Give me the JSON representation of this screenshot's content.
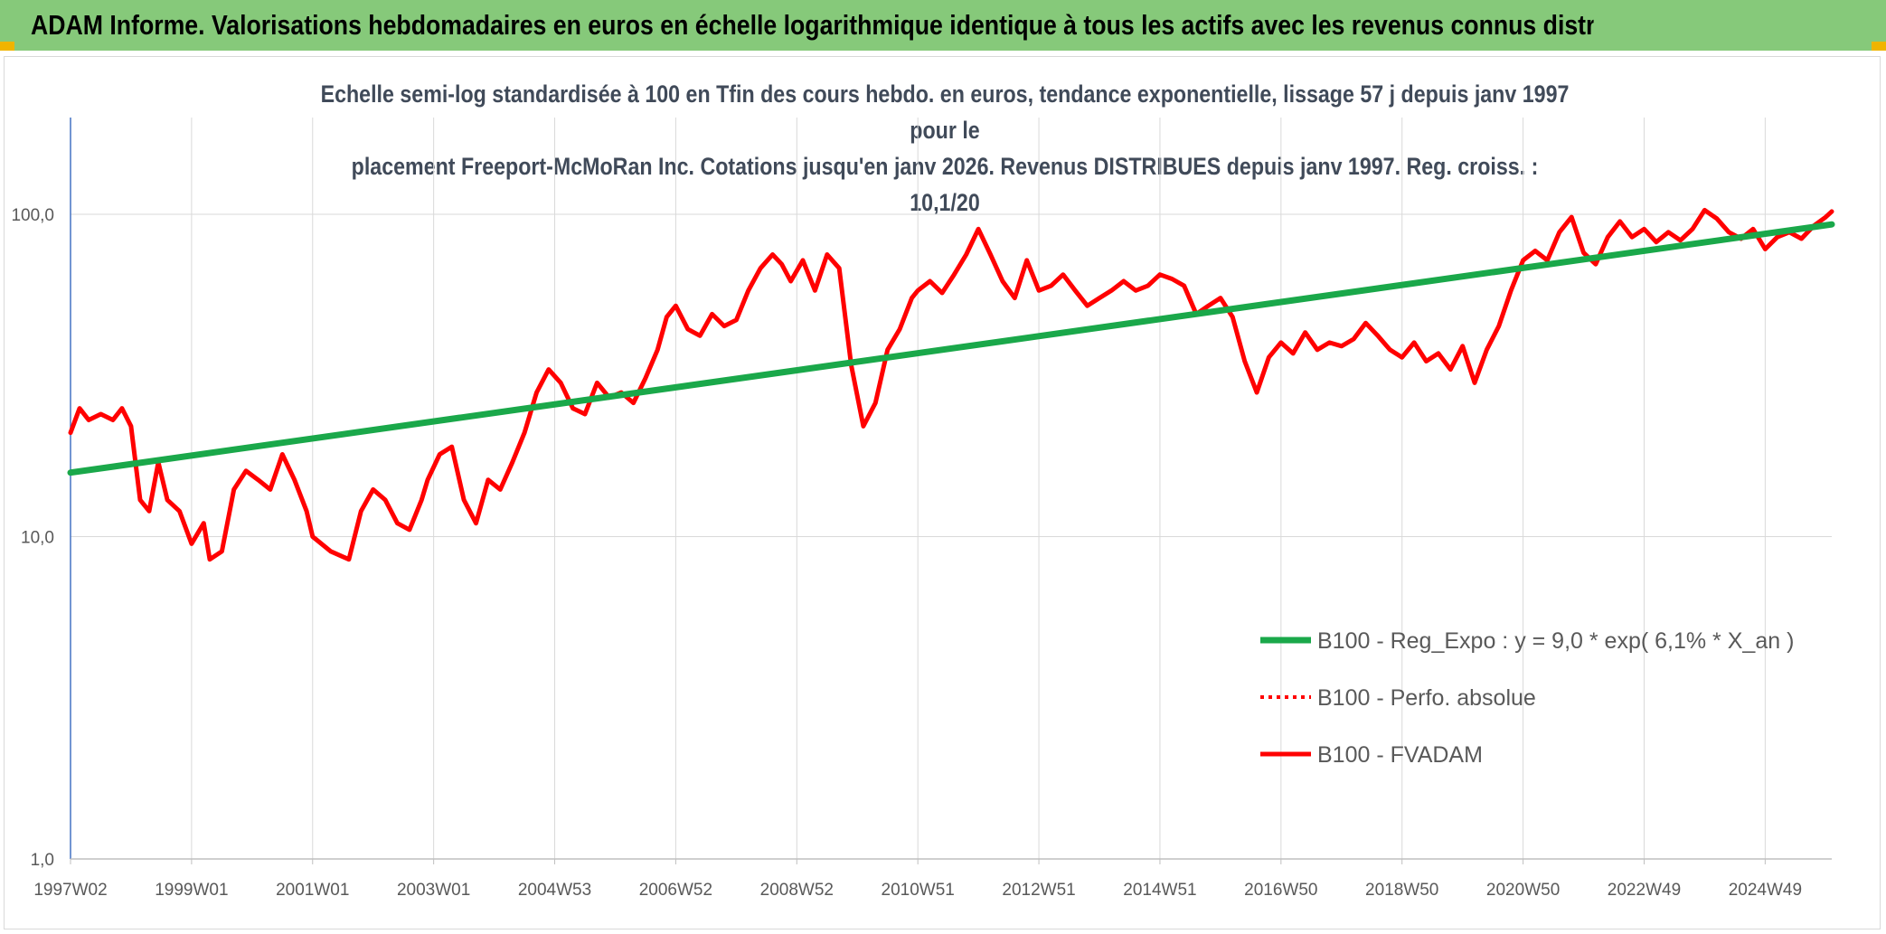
{
  "header": {
    "title": "ADAM Informe. Valorisations hebdomadaires en euros en échelle logarithmique identique à tous les actifs avec les revenus connus distribués"
  },
  "chart_data": {
    "type": "line",
    "title_line1": "Echelle semi-log standardisée à 100 en Tfin des cours hebdo. en euros, tendance exponentielle, lissage 57 j depuis janv 1997 pour le",
    "title_line2": "placement Freeport-McMoRan Inc. Cotations jusqu'en janv 2026. Revenus DISTRIBUES depuis janv 1997. Reg. croiss. : 10,1/20",
    "y_scale": "log",
    "ylim": [
      1,
      170
    ],
    "xlim": [
      1997.0,
      2026.1
    ],
    "y_ticks": [
      {
        "value": 100,
        "label": "100,0"
      },
      {
        "value": 10,
        "label": "10,0"
      },
      {
        "value": 1,
        "label": "1,0"
      }
    ],
    "x_ticks": [
      {
        "value": 1997.0,
        "label": "1997W02"
      },
      {
        "value": 1999.0,
        "label": "1999W01"
      },
      {
        "value": 2001.0,
        "label": "2001W01"
      },
      {
        "value": 2003.0,
        "label": "2003W01"
      },
      {
        "value": 2005.0,
        "label": "2004W53"
      },
      {
        "value": 2007.0,
        "label": "2006W52"
      },
      {
        "value": 2009.0,
        "label": "2008W52"
      },
      {
        "value": 2011.0,
        "label": "2010W51"
      },
      {
        "value": 2013.0,
        "label": "2012W51"
      },
      {
        "value": 2015.0,
        "label": "2014W51"
      },
      {
        "value": 2017.0,
        "label": "2016W50"
      },
      {
        "value": 2019.0,
        "label": "2018W50"
      },
      {
        "value": 2021.0,
        "label": "2020W50"
      },
      {
        "value": 2023.0,
        "label": "2022W49"
      },
      {
        "value": 2025.0,
        "label": "2024W49"
      }
    ],
    "legend_position": "bottom-right",
    "series": [
      {
        "name": "B100 - Reg_Expo : y = 9,0 * exp( 6,1% *  X_an )",
        "color": "#1aa84a",
        "style": "solid",
        "x": [
          1997.0,
          2026.1
        ],
        "values": [
          15.8,
          93.0
        ]
      },
      {
        "name": "B100 - Perfo. absolue",
        "color": "#ff0000",
        "style": "dotted",
        "x": [],
        "values": []
      },
      {
        "name": "B100 - FVADAM",
        "color": "#ff0000",
        "style": "solid",
        "x": [
          1997.0,
          1997.15,
          1997.3,
          1997.5,
          1997.7,
          1997.85,
          1998.0,
          1998.15,
          1998.3,
          1998.45,
          1998.6,
          1998.8,
          1999.0,
          1999.2,
          1999.3,
          1999.5,
          1999.7,
          1999.9,
          2000.1,
          2000.3,
          2000.5,
          2000.7,
          2000.9,
          2001.0,
          2001.3,
          2001.6,
          2001.8,
          2002.0,
          2002.2,
          2002.4,
          2002.6,
          2002.8,
          2002.9,
          2003.1,
          2003.3,
          2003.5,
          2003.7,
          2003.9,
          2004.1,
          2004.3,
          2004.5,
          2004.7,
          2004.9,
          2005.1,
          2005.3,
          2005.5,
          2005.7,
          2005.9,
          2006.1,
          2006.3,
          2006.5,
          2006.7,
          2006.85,
          2007.0,
          2007.2,
          2007.4,
          2007.6,
          2007.8,
          2008.0,
          2008.2,
          2008.4,
          2008.6,
          2008.75,
          2008.9,
          2009.1,
          2009.3,
          2009.5,
          2009.7,
          2009.9,
          2010.1,
          2010.3,
          2010.5,
          2010.7,
          2010.9,
          2011.0,
          2011.2,
          2011.4,
          2011.6,
          2011.8,
          2012.0,
          2012.2,
          2012.4,
          2012.6,
          2012.8,
          2013.0,
          2013.2,
          2013.4,
          2013.6,
          2013.8,
          2014.0,
          2014.2,
          2014.4,
          2014.6,
          2014.8,
          2015.0,
          2015.2,
          2015.4,
          2015.6,
          2015.8,
          2016.0,
          2016.2,
          2016.4,
          2016.6,
          2016.8,
          2017.0,
          2017.2,
          2017.4,
          2017.6,
          2017.8,
          2018.0,
          2018.2,
          2018.4,
          2018.6,
          2018.8,
          2019.0,
          2019.2,
          2019.4,
          2019.6,
          2019.8,
          2020.0,
          2020.2,
          2020.4,
          2020.6,
          2020.8,
          2021.0,
          2021.2,
          2021.4,
          2021.6,
          2021.8,
          2022.0,
          2022.2,
          2022.4,
          2022.6,
          2022.8,
          2023.0,
          2023.2,
          2023.4,
          2023.6,
          2023.8,
          2024.0,
          2024.2,
          2024.4,
          2024.6,
          2024.8,
          2025.0,
          2025.2,
          2025.4,
          2025.6,
          2025.8,
          2026.0,
          2026.1
        ],
        "values": [
          21,
          25,
          23,
          24,
          23,
          25,
          22,
          13,
          12,
          17,
          13,
          12,
          9.5,
          11,
          8.5,
          9,
          14,
          16,
          15,
          14,
          18,
          15,
          12,
          10,
          9,
          8.5,
          12,
          14,
          13,
          11,
          10.5,
          13,
          15,
          18,
          19,
          13,
          11,
          15,
          14,
          17,
          21,
          28,
          33,
          30,
          25,
          24,
          30,
          27,
          28,
          26,
          31,
          38,
          48,
          52,
          44,
          42,
          49,
          45,
          47,
          58,
          68,
          75,
          70,
          62,
          72,
          58,
          75,
          68,
          34,
          22,
          26,
          38,
          44,
          55,
          58,
          62,
          57,
          65,
          75,
          90,
          75,
          62,
          55,
          72,
          58,
          60,
          65,
          58,
          52,
          55,
          58,
          62,
          58,
          60,
          65,
          63,
          60,
          49,
          52,
          55,
          48,
          35,
          28,
          36,
          40,
          37,
          43,
          38,
          40,
          39,
          41,
          46,
          42,
          38,
          36,
          40,
          35,
          37,
          33,
          39,
          30,
          38,
          45,
          58,
          72,
          77,
          72,
          88,
          98,
          76,
          70,
          85,
          95,
          85,
          90,
          82,
          88,
          83,
          90,
          103,
          97,
          88,
          84,
          90,
          78,
          85,
          88,
          84,
          92,
          98,
          102
        ]
      }
    ]
  }
}
